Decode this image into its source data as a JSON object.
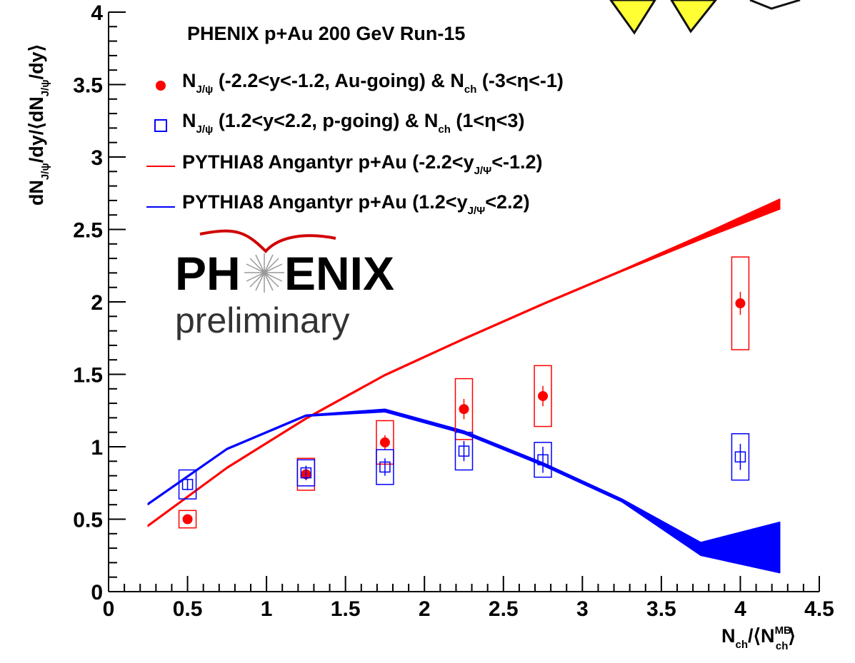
{
  "chart_data": {
    "type": "scatter",
    "title": "PHENIX p+Au 200 GeV Run-15",
    "xlim": [
      0,
      4.5
    ],
    "ylim": [
      0,
      4
    ],
    "x_ticks": [
      "0",
      "0.5",
      "1",
      "1.5",
      "2",
      "2.5",
      "3",
      "3.5",
      "4",
      "4.5"
    ],
    "y_ticks": [
      "0",
      "0.5",
      "1",
      "1.5",
      "2",
      "2.5",
      "3",
      "3.5",
      "4"
    ],
    "grid": false,
    "legend_position": "top",
    "watermark": {
      "logo": "PHENIX",
      "text": "preliminary"
    },
    "colors": {
      "red": "#ff0000",
      "blue": "#0000ff",
      "banner_yellow": "#ffff33"
    },
    "series": [
      {
        "kind": "points",
        "marker": "filled-circle",
        "color": "#ff0000",
        "x": [
          0.5,
          1.25,
          1.75,
          2.25,
          2.75,
          4.0
        ],
        "y": [
          0.5,
          0.81,
          1.03,
          1.26,
          1.35,
          1.99
        ],
        "stat_err": [
          0.02,
          0.04,
          0.05,
          0.07,
          0.07,
          0.08
        ],
        "sys_err": [
          0.06,
          0.11,
          0.15,
          0.21,
          0.21,
          0.32
        ]
      },
      {
        "kind": "points",
        "marker": "open-square",
        "color": "#0000ff",
        "x": [
          0.5,
          1.25,
          1.75,
          2.25,
          2.75,
          4.0
        ],
        "y": [
          0.74,
          0.82,
          0.86,
          0.97,
          0.91,
          0.93
        ],
        "stat_err": [
          0.04,
          0.05,
          0.06,
          0.07,
          0.09,
          0.09
        ],
        "sys_err": [
          0.1,
          0.09,
          0.12,
          0.13,
          0.12,
          0.16
        ]
      },
      {
        "kind": "band",
        "color": "#ff0000",
        "x": [
          0.25,
          0.75,
          1.25,
          1.75,
          2.25,
          2.75,
          3.25,
          3.75,
          4.25
        ],
        "y_low": [
          0.45,
          0.85,
          1.19,
          1.49,
          1.74,
          1.98,
          2.21,
          2.43,
          2.64
        ],
        "y_high": [
          0.46,
          0.86,
          1.2,
          1.5,
          1.75,
          1.99,
          2.22,
          2.46,
          2.71
        ]
      },
      {
        "kind": "band",
        "color": "#0000ff",
        "x": [
          0.25,
          0.75,
          1.25,
          1.75,
          2.25,
          2.75,
          3.25,
          3.75,
          4.25
        ],
        "y_low": [
          0.6,
          0.98,
          1.21,
          1.24,
          1.09,
          0.87,
          0.62,
          0.25,
          0.13
        ],
        "y_high": [
          0.61,
          0.99,
          1.22,
          1.26,
          1.11,
          0.89,
          0.64,
          0.34,
          0.48
        ]
      }
    ]
  }
}
